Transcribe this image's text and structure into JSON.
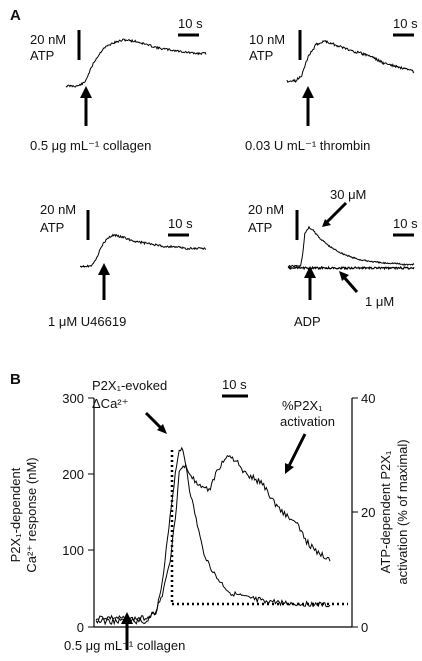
{
  "panel_a": {
    "letter": "A",
    "subplots": [
      {
        "scale_value": "20 nM",
        "scale_unit": "ATP",
        "time_scale": "10 s",
        "stimulus": "0.5 μg mL⁻¹ collagen"
      },
      {
        "scale_value": "10 nM",
        "scale_unit": "ATP",
        "time_scale": "10 s",
        "stimulus": "0.03 U mL⁻¹ thrombin"
      },
      {
        "scale_value": "20 nM",
        "scale_unit": "ATP",
        "time_scale": "10 s",
        "stimulus": "1 μM U46619"
      },
      {
        "scale_value": "20 nM",
        "scale_unit": "ATP",
        "time_scale": "10 s",
        "stimulus": "ADP",
        "label_high": "30 μM",
        "label_low": "1 μM"
      }
    ]
  },
  "panel_b": {
    "letter": "B",
    "time_scale": "10 s",
    "left_axis": {
      "label_line1": "P2X₁-dependent",
      "label_line2": "Ca²⁺ response (nM)",
      "ticks": [
        "0",
        "100",
        "200",
        "300"
      ]
    },
    "right_axis": {
      "label_line1": "ATP-dependent P2X₁",
      "label_line2": "activation (% of maximal)",
      "ticks": [
        "0",
        "20",
        "40"
      ]
    },
    "annotation_ca_line1": "P2X₁-evoked",
    "annotation_ca_line2": "ΔCa²⁺",
    "annotation_p2x_line1": "%P2X₁",
    "annotation_p2x_line2": "activation",
    "stimulus": "0.5 μg mL⁻¹ collagen"
  },
  "chart_data": [
    {
      "type": "line",
      "panel": "A",
      "stimulus": "0.5 μg mL⁻¹ collagen",
      "x": [
        0,
        5,
        8,
        12,
        16,
        20,
        25,
        30,
        35,
        40,
        45,
        50,
        55,
        60
      ],
      "y": [
        0,
        0,
        2,
        14,
        22,
        25,
        27,
        26,
        24,
        22,
        21,
        20,
        19,
        19
      ]
    },
    {
      "type": "line",
      "panel": "A",
      "stimulus": "0.03 U mL⁻¹ thrombin",
      "x": [
        0,
        4,
        7,
        10,
        14,
        18,
        22,
        26,
        30,
        35,
        40,
        45,
        50,
        55,
        60
      ],
      "y": [
        0,
        0,
        2,
        8,
        12,
        13,
        12,
        11,
        10,
        9,
        8,
        6,
        5,
        4,
        3
      ]
    },
    {
      "type": "line",
      "panel": "A",
      "stimulus": "1 μM U46619",
      "x": [
        0,
        5,
        8,
        10,
        13,
        16,
        20,
        25,
        30,
        35,
        40,
        45,
        50,
        55,
        60
      ],
      "y": [
        0,
        0,
        4,
        10,
        14,
        16,
        15,
        13,
        12,
        11,
        10,
        10,
        9,
        9,
        9
      ]
    },
    {
      "type": "line",
      "panel": "A",
      "stimulus": "ADP",
      "series": [
        {
          "name": "30 μM",
          "x": [
            0,
            6,
            7,
            8,
            10,
            12,
            15,
            20,
            25,
            30,
            35,
            40,
            45,
            50,
            55,
            60
          ],
          "y": [
            0,
            0,
            8,
            22,
            26,
            24,
            19,
            13,
            9,
            6,
            4,
            3,
            2,
            2,
            1,
            1
          ]
        },
        {
          "name": "1 μM",
          "x": [
            0,
            10,
            20,
            30,
            40,
            50,
            60
          ],
          "y": [
            0,
            0,
            0,
            0,
            0,
            0,
            0
          ]
        }
      ]
    },
    {
      "type": "line",
      "panel": "B",
      "x_unit": "s",
      "series": [
        {
          "name": "P2X₁-evoked ΔCa²⁺",
          "axis": "left",
          "x": [
            0,
            5,
            10,
            15,
            18,
            20,
            22,
            24,
            25,
            26,
            27,
            28,
            30,
            32,
            34,
            36,
            38,
            40,
            45,
            50,
            55,
            60,
            65,
            70
          ],
          "y": [
            12,
            12,
            10,
            12,
            20,
            60,
            140,
            210,
            235,
            230,
            210,
            180,
            140,
            100,
            80,
            65,
            55,
            45,
            38,
            35,
            32,
            30,
            30,
            28
          ]
        },
        {
          "name": "%P2X₁ activation",
          "axis": "right",
          "x": [
            0,
            5,
            10,
            15,
            18,
            20,
            22,
            24,
            25,
            27,
            30,
            32,
            34,
            36,
            38,
            40,
            42,
            44,
            47,
            50,
            53,
            56,
            60,
            63,
            66,
            70
          ],
          "y": [
            1,
            1,
            1,
            1,
            3,
            6,
            11,
            20,
            28,
            28,
            25,
            24,
            24,
            27,
            29,
            30,
            29,
            27,
            26,
            25,
            22,
            20,
            18,
            15,
            13,
            12
          ]
        }
      ],
      "left_range": [
        0,
        300
      ],
      "right_range": [
        0,
        40
      ]
    }
  ]
}
